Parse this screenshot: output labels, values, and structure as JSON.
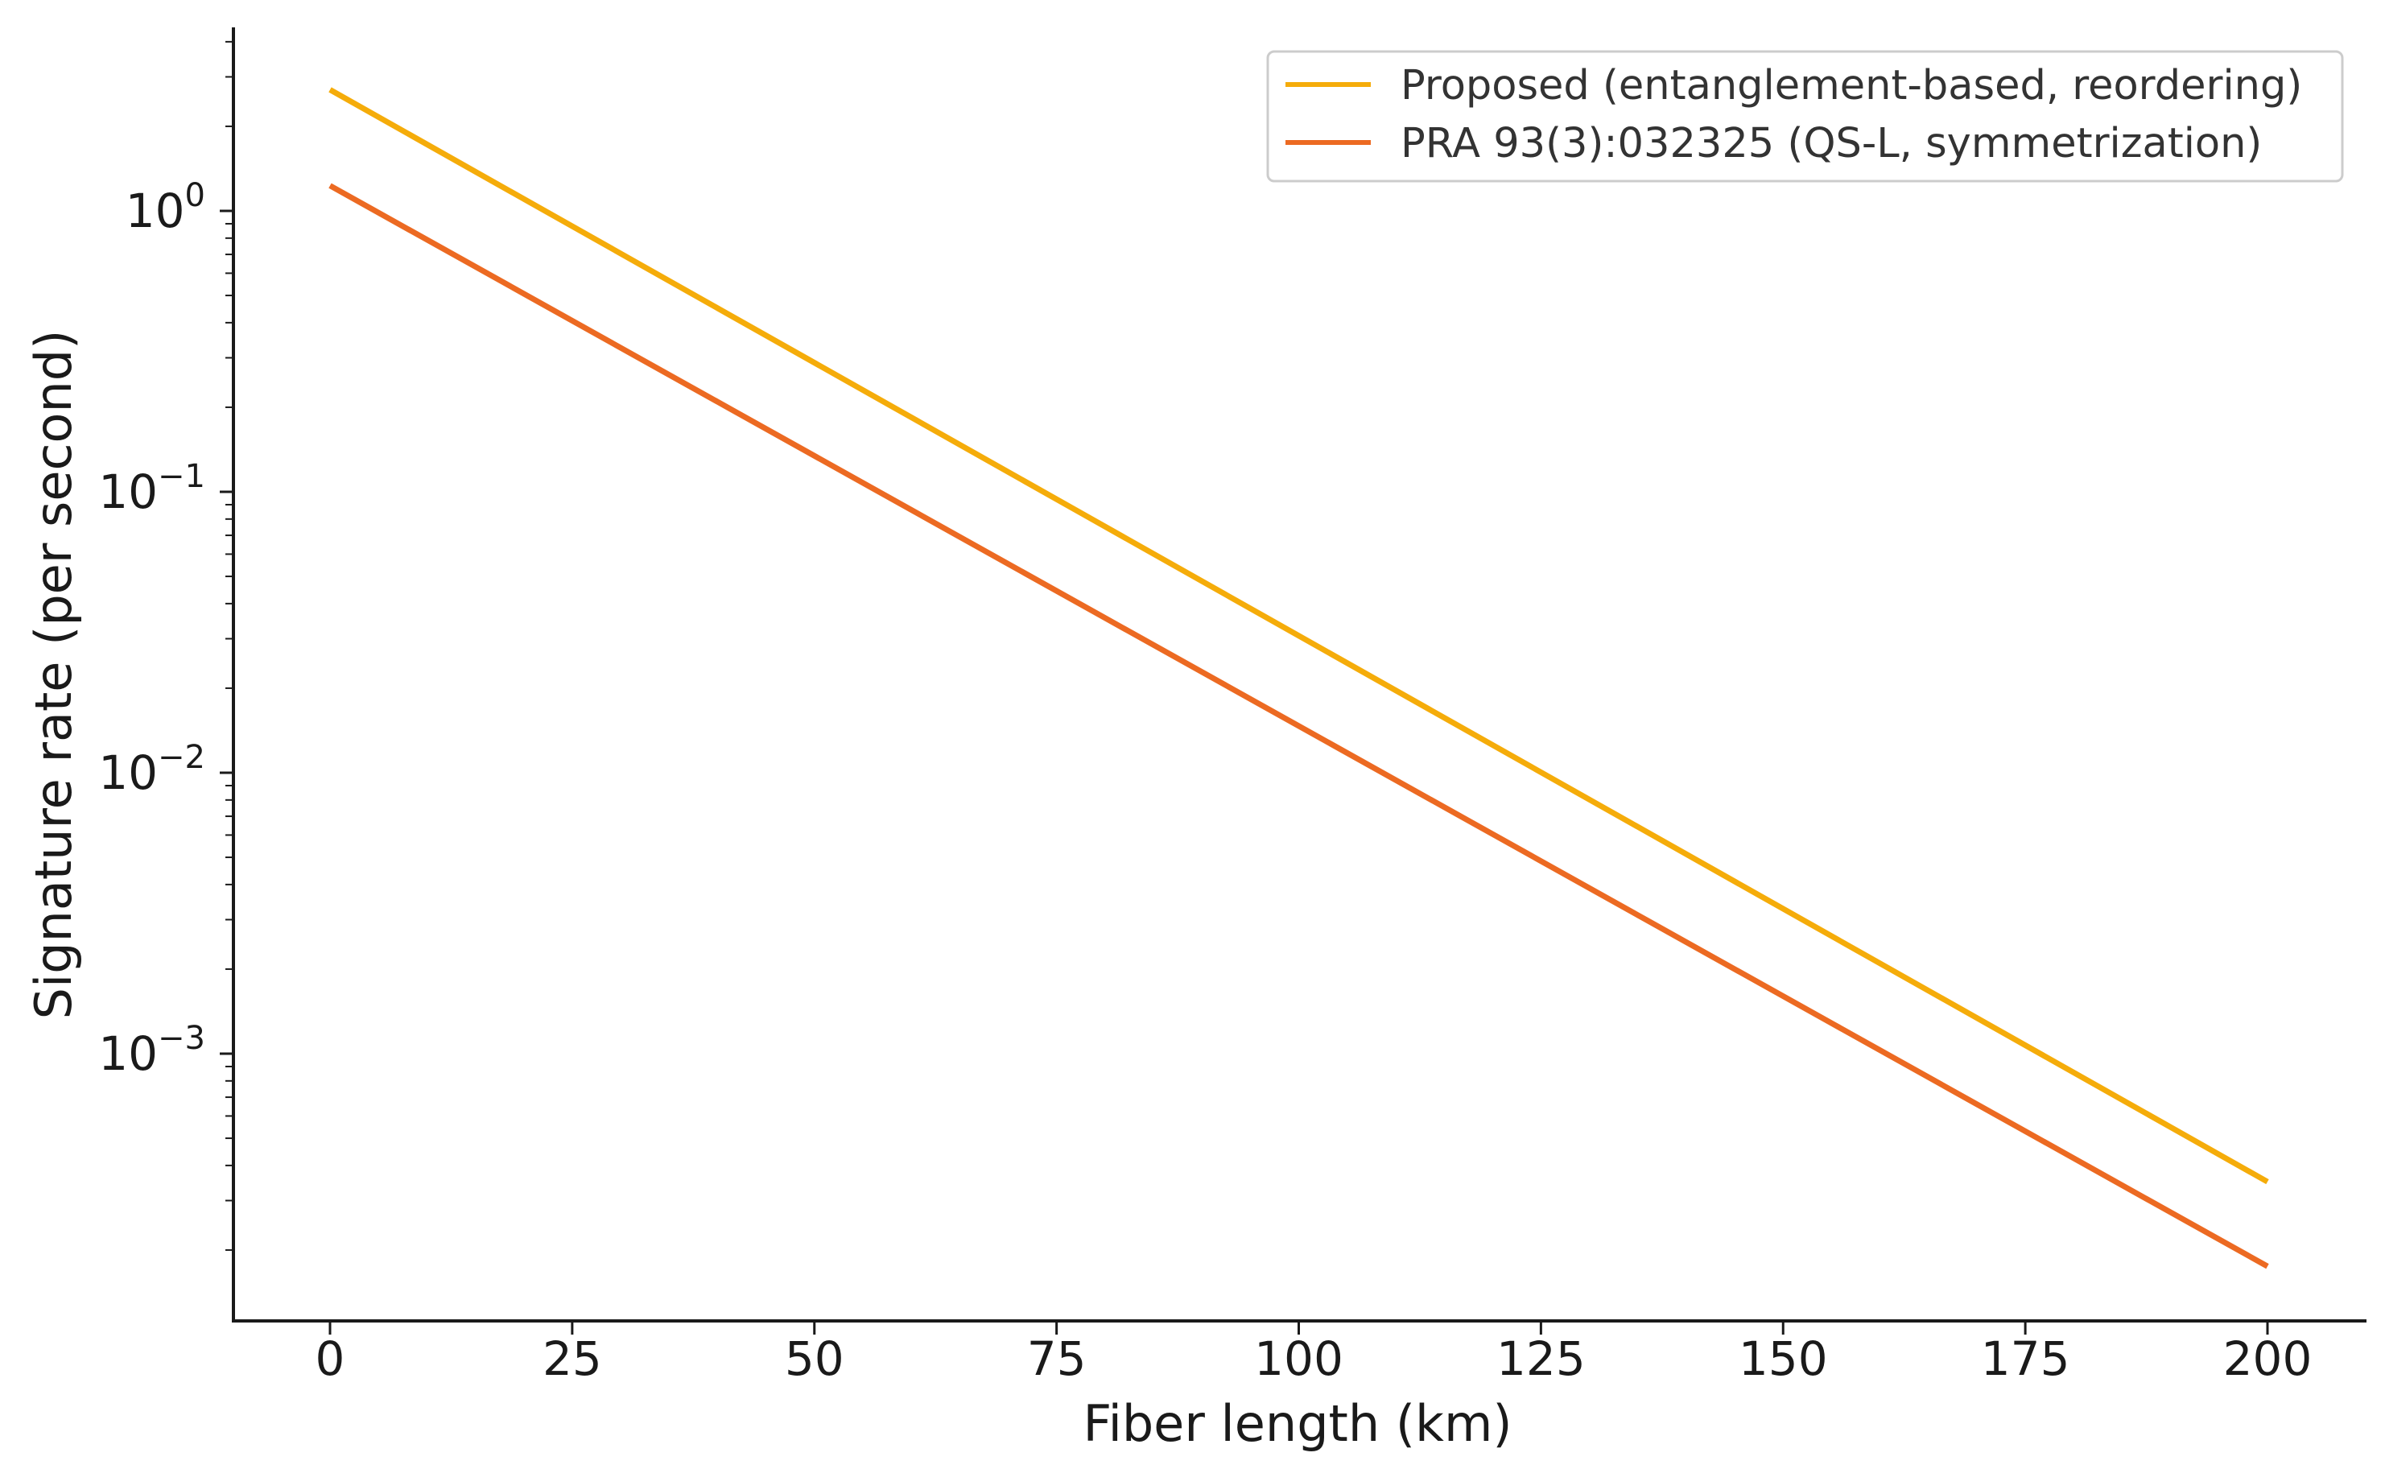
{
  "chart_data": {
    "type": "line",
    "title": "",
    "xlabel": "Fiber length (km)",
    "ylabel": "Signature rate (per second)",
    "yscale": "log",
    "xlim": [
      -10,
      210
    ],
    "ylim": [
      0.00011,
      4.0
    ],
    "x_ticks": [
      0,
      25,
      50,
      75,
      100,
      125,
      150,
      175,
      200
    ],
    "x_tick_labels": [
      "0",
      "25",
      "50",
      "75",
      "100",
      "125",
      "150",
      "175",
      "200"
    ],
    "y_major_ticks": [
      {
        "value": 1,
        "base": "10",
        "exp": "0"
      },
      {
        "value": 0.1,
        "base": "10",
        "exp": "−1"
      },
      {
        "value": 0.01,
        "base": "10",
        "exp": "−2"
      },
      {
        "value": 0.001,
        "base": "10",
        "exp": "−3"
      }
    ],
    "grid": false,
    "legend_position": "top-right",
    "series": [
      {
        "name": "Proposed (entanglement-based, reordering)",
        "color": "#f5ac0a",
        "x": [
          0,
          200
        ],
        "values": [
          2.7,
          0.00035
        ]
      },
      {
        "name": "PRA 93(3):032325 (QS-L, symmetrization)",
        "color": "#ec6a22",
        "x": [
          0,
          200
        ],
        "values": [
          1.23,
          0.000175
        ]
      }
    ]
  }
}
